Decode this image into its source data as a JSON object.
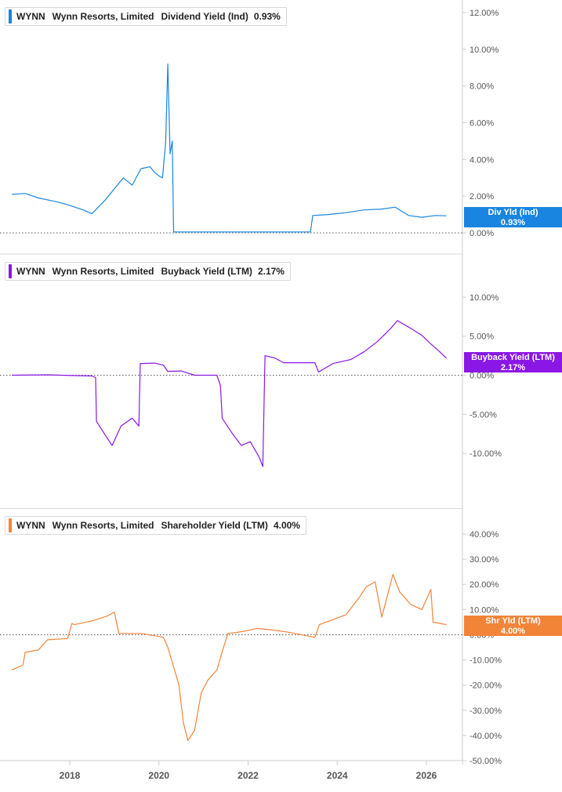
{
  "colors": {
    "div": "#1a85e0",
    "buyback": "#8a17e5",
    "shareholder": "#f28438",
    "axis": "#cccccc",
    "text": "#555555"
  },
  "x_axis": {
    "labels": [
      "2018",
      "2020",
      "2022",
      "2024",
      "2026"
    ]
  },
  "panels": [
    {
      "legend": {
        "ticker": "WYNN",
        "company": "Wynn Resorts, Limited",
        "metric": "Dividend Yield (Ind)",
        "value": "0.93%"
      },
      "tag": {
        "line1": "Div Yld (Ind)",
        "line2": "0.93%"
      }
    },
    {
      "legend": {
        "ticker": "WYNN",
        "company": "Wynn Resorts, Limited",
        "metric": "Buyback Yield (LTM)",
        "value": "2.17%"
      },
      "tag": {
        "line1": "Buyback Yield (LTM)",
        "line2": "2.17%"
      }
    },
    {
      "legend": {
        "ticker": "WYNN",
        "company": "Wynn Resorts, Limited",
        "metric": "Shareholder Yield (LTM)",
        "value": "4.00%"
      },
      "tag": {
        "line1": "Shr Yld (LTM)",
        "line2": "4.00%"
      }
    }
  ],
  "chart_data": [
    {
      "type": "line",
      "ylim": [
        0,
        12
      ],
      "yticks": [
        "0.00%",
        "2.00%",
        "4.00%",
        "6.00%",
        "8.00%",
        "10.00%",
        "12.00%"
      ],
      "ytick_values": [
        0,
        2,
        4,
        6,
        8,
        10,
        12
      ],
      "xlim": [
        2016.7,
        2026.5
      ],
      "series": [
        {
          "name": "Dividend Yield (Ind)",
          "x": [
            2016.7,
            2017.0,
            2017.3,
            2017.7,
            2018.0,
            2018.3,
            2018.5,
            2018.8,
            2019.0,
            2019.2,
            2019.4,
            2019.6,
            2019.8,
            2019.9,
            2020.0,
            2020.08,
            2020.15,
            2020.2,
            2020.25,
            2020.3,
            2020.33,
            2020.35,
            2020.8,
            2021.5,
            2022.0,
            2022.5,
            2023.0,
            2023.4,
            2023.45,
            2023.8,
            2024.2,
            2024.6,
            2025.0,
            2025.3,
            2025.6,
            2025.9,
            2026.2,
            2026.45
          ],
          "y": [
            2.1,
            2.15,
            1.9,
            1.7,
            1.5,
            1.25,
            1.05,
            1.8,
            2.4,
            3.0,
            2.6,
            3.5,
            3.6,
            3.3,
            3.1,
            3.0,
            4.9,
            9.2,
            4.3,
            5.0,
            0.05,
            0.05,
            0.05,
            0.05,
            0.05,
            0.05,
            0.05,
            0.05,
            0.95,
            1.0,
            1.1,
            1.25,
            1.3,
            1.4,
            0.95,
            0.85,
            0.95,
            0.93
          ]
        }
      ]
    },
    {
      "type": "line",
      "ylim": [
        -12.5,
        11
      ],
      "yticks": [
        "10.00%",
        "5.00%",
        "0.00%",
        "-5.00%",
        "-10.00%"
      ],
      "ytick_values": [
        10,
        5,
        0,
        -5,
        -10
      ],
      "xlim": [
        2016.7,
        2026.5
      ],
      "series": [
        {
          "name": "Buyback Yield (LTM)",
          "x": [
            2016.7,
            2017.5,
            2017.8,
            2018.5,
            2018.58,
            2018.6,
            2018.8,
            2018.95,
            2019.15,
            2019.4,
            2019.55,
            2019.58,
            2019.9,
            2020.1,
            2020.2,
            2020.5,
            2020.8,
            2021.3,
            2021.38,
            2021.42,
            2021.65,
            2021.85,
            2022.05,
            2022.25,
            2022.33,
            2022.38,
            2022.6,
            2022.8,
            2023.5,
            2023.58,
            2023.9,
            2024.3,
            2024.6,
            2024.9,
            2025.2,
            2025.35,
            2025.65,
            2025.9,
            2026.1,
            2026.3,
            2026.45
          ],
          "y": [
            0,
            0.05,
            0,
            -0.1,
            -0.3,
            -5.9,
            -7.7,
            -9.0,
            -6.5,
            -5.5,
            -6.5,
            1.5,
            1.55,
            1.3,
            0.5,
            0.55,
            0.0,
            0.0,
            -1.3,
            -5.5,
            -7.5,
            -9.0,
            -8.5,
            -10.5,
            -11.7,
            2.5,
            2.2,
            1.6,
            1.6,
            0.4,
            1.5,
            2.0,
            3.0,
            4.3,
            6.0,
            7.0,
            6.0,
            5.1,
            4.0,
            3.0,
            2.17
          ]
        }
      ]
    },
    {
      "type": "line",
      "ylim": [
        -50,
        40
      ],
      "yticks": [
        "40.00%",
        "30.00%",
        "20.00%",
        "10.00%",
        "0.00%",
        "-10.00%",
        "-20.00%",
        "-30.00%",
        "-40.00%",
        "-50.00%"
      ],
      "ytick_values": [
        40,
        30,
        20,
        10,
        0,
        -10,
        -20,
        -30,
        -40,
        -50
      ],
      "xlim": [
        2016.7,
        2026.5
      ],
      "series": [
        {
          "name": "Shareholder Yield (LTM)",
          "x": [
            2016.7,
            2016.95,
            2017.0,
            2017.3,
            2017.5,
            2017.95,
            2018.05,
            2018.1,
            2018.5,
            2018.85,
            2019.0,
            2019.1,
            2019.6,
            2020.1,
            2020.2,
            2020.35,
            2020.45,
            2020.55,
            2020.65,
            2020.8,
            2020.95,
            2021.1,
            2021.3,
            2021.45,
            2021.55,
            2021.7,
            2021.95,
            2022.2,
            2022.5,
            2022.9,
            2023.5,
            2023.6,
            2023.9,
            2024.2,
            2024.5,
            2024.65,
            2024.85,
            2025.0,
            2025.25,
            2025.4,
            2025.65,
            2025.9,
            2026.1,
            2026.15,
            2026.3,
            2026.45
          ],
          "y": [
            -14,
            -12,
            -7,
            -6,
            -2,
            -1.5,
            4.5,
            4.0,
            5.5,
            7.5,
            9.0,
            0.5,
            0.5,
            -1.0,
            -5.0,
            -14,
            -20,
            -35,
            -42,
            -38,
            -23,
            -18,
            -14,
            -5,
            0.5,
            0.8,
            1.5,
            2.5,
            2.0,
            1.0,
            -1.0,
            4.0,
            6.0,
            8.0,
            15,
            19,
            21,
            7.0,
            24,
            17,
            12,
            10,
            18,
            5.0,
            4.5,
            4.0
          ]
        }
      ]
    }
  ]
}
